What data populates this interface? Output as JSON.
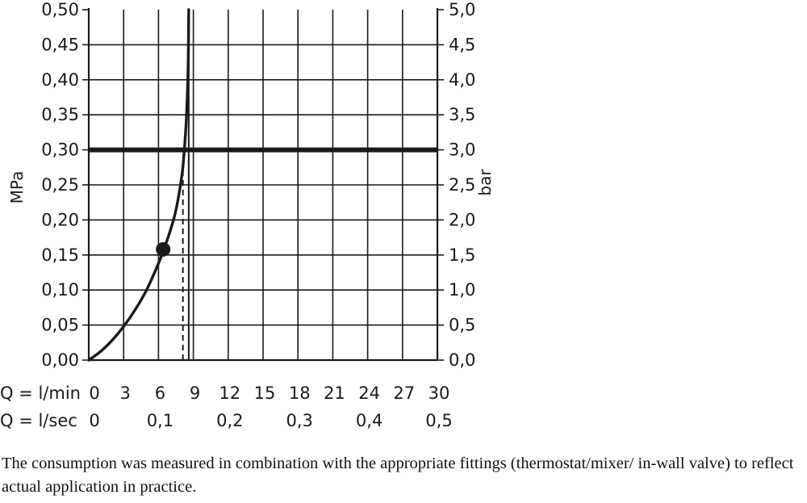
{
  "chart_data": {
    "type": "line",
    "x_unit_label": "Q = l/min",
    "x_secondary_unit_label": "Q = l/sec",
    "x_ticks": [
      "0",
      "3",
      "6",
      "9",
      "12",
      "15",
      "18",
      "21",
      "24",
      "27",
      "30"
    ],
    "x_secondary_ticks": [
      "0",
      "0,1",
      "0,2",
      "0,3",
      "0,4",
      "0,5"
    ],
    "xlim": [
      0,
      30
    ],
    "ylabel_left": "MPa",
    "ylabel_right": "bar",
    "y_ticks_left": [
      "0,00",
      "0,05",
      "0,10",
      "0,15",
      "0,20",
      "0,25",
      "0,30",
      "0,35",
      "0,40",
      "0,45",
      "0,50"
    ],
    "y_ticks_right": [
      "0,0",
      "0,5",
      "1,0",
      "1,5",
      "2,0",
      "2,5",
      "3,0",
      "3,5",
      "4,0",
      "4,5",
      "5,0"
    ],
    "ylim": [
      0,
      0.5
    ],
    "grid": true,
    "series": [
      {
        "style": "solid-curve",
        "x": [
          0,
          1,
          2,
          3,
          4,
          5,
          6,
          6.5,
          7,
          7.5,
          8,
          8.2,
          8.4,
          8.55,
          8.6
        ],
        "y": [
          0,
          0.012,
          0.028,
          0.048,
          0.072,
          0.101,
          0.138,
          0.16,
          0.184,
          0.214,
          0.262,
          0.295,
          0.345,
          0.42,
          0.5
        ]
      }
    ],
    "reference_lines": [
      {
        "orientation": "horizontal",
        "y": 0.3,
        "style": "thick"
      },
      {
        "orientation": "vertical",
        "x": 8.1,
        "y_from": 0,
        "y_to": 0.28,
        "style": "dashed"
      },
      {
        "orientation": "vertical",
        "x": 8.6,
        "y_from": 0,
        "y_to": 0.5,
        "style": "thin"
      }
    ],
    "markers": [
      {
        "x": 6.4,
        "y": 0.158
      }
    ]
  },
  "caption": "The consumption was measured in combination with the appropriate fittings (thermostat/mixer/ in-wall valve) to reflect actual application in practice."
}
